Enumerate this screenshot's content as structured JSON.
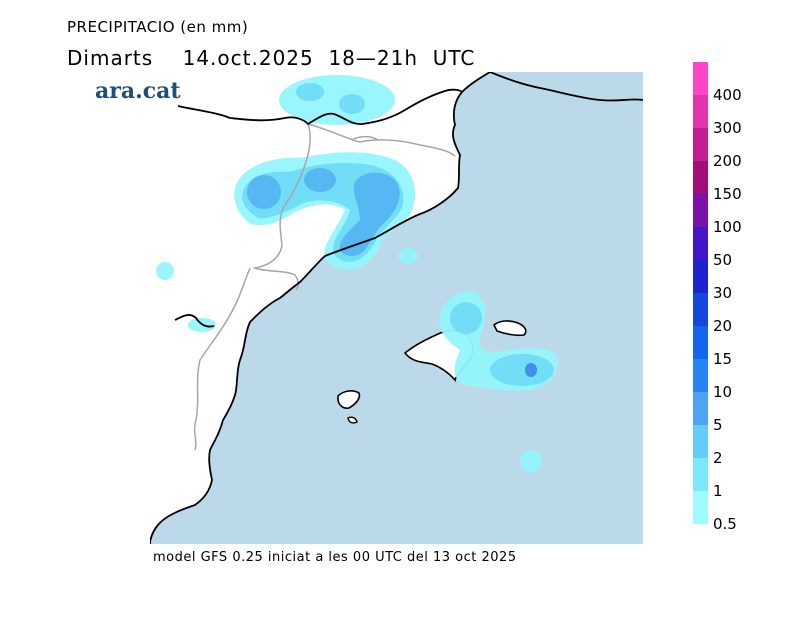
{
  "header": {
    "title": "PRECIPITACIO (en mm)",
    "subtitle": "Dimarts    14.oct.2025  18—21h  UTC",
    "logo": "ara.cat"
  },
  "footer": {
    "text": "model GFS 0.25 iniciat a les 00 UTC del 13 oct 2025"
  },
  "colors": {
    "sea": "#bcd9ea",
    "land": "#ffffff",
    "coast": "#000000",
    "border": "#a6a6a6",
    "precip_light": "#93f6fc",
    "precip_mid": "#71ddf7",
    "precip_strong": "#56b8f3",
    "precip_max": "#3e8ef0"
  },
  "legend": {
    "levels": [
      {
        "label": "400",
        "color": "#ff44c8"
      },
      {
        "label": "300",
        "color": "#e433b0"
      },
      {
        "label": "200",
        "color": "#c61d94"
      },
      {
        "label": "150",
        "color": "#a10e79"
      },
      {
        "label": "100",
        "color": "#7a12a8"
      },
      {
        "label": "50",
        "color": "#4416c9"
      },
      {
        "label": "30",
        "color": "#1c23cf"
      },
      {
        "label": "20",
        "color": "#1447e0"
      },
      {
        "label": "15",
        "color": "#1566ee"
      },
      {
        "label": "10",
        "color": "#2583f3"
      },
      {
        "label": "5",
        "color": "#4ea3f4"
      },
      {
        "label": "2",
        "color": "#64ccf7"
      },
      {
        "label": "1",
        "color": "#7ee8fb"
      },
      {
        "label": "0.5",
        "color": "#9ffcfd"
      }
    ]
  }
}
